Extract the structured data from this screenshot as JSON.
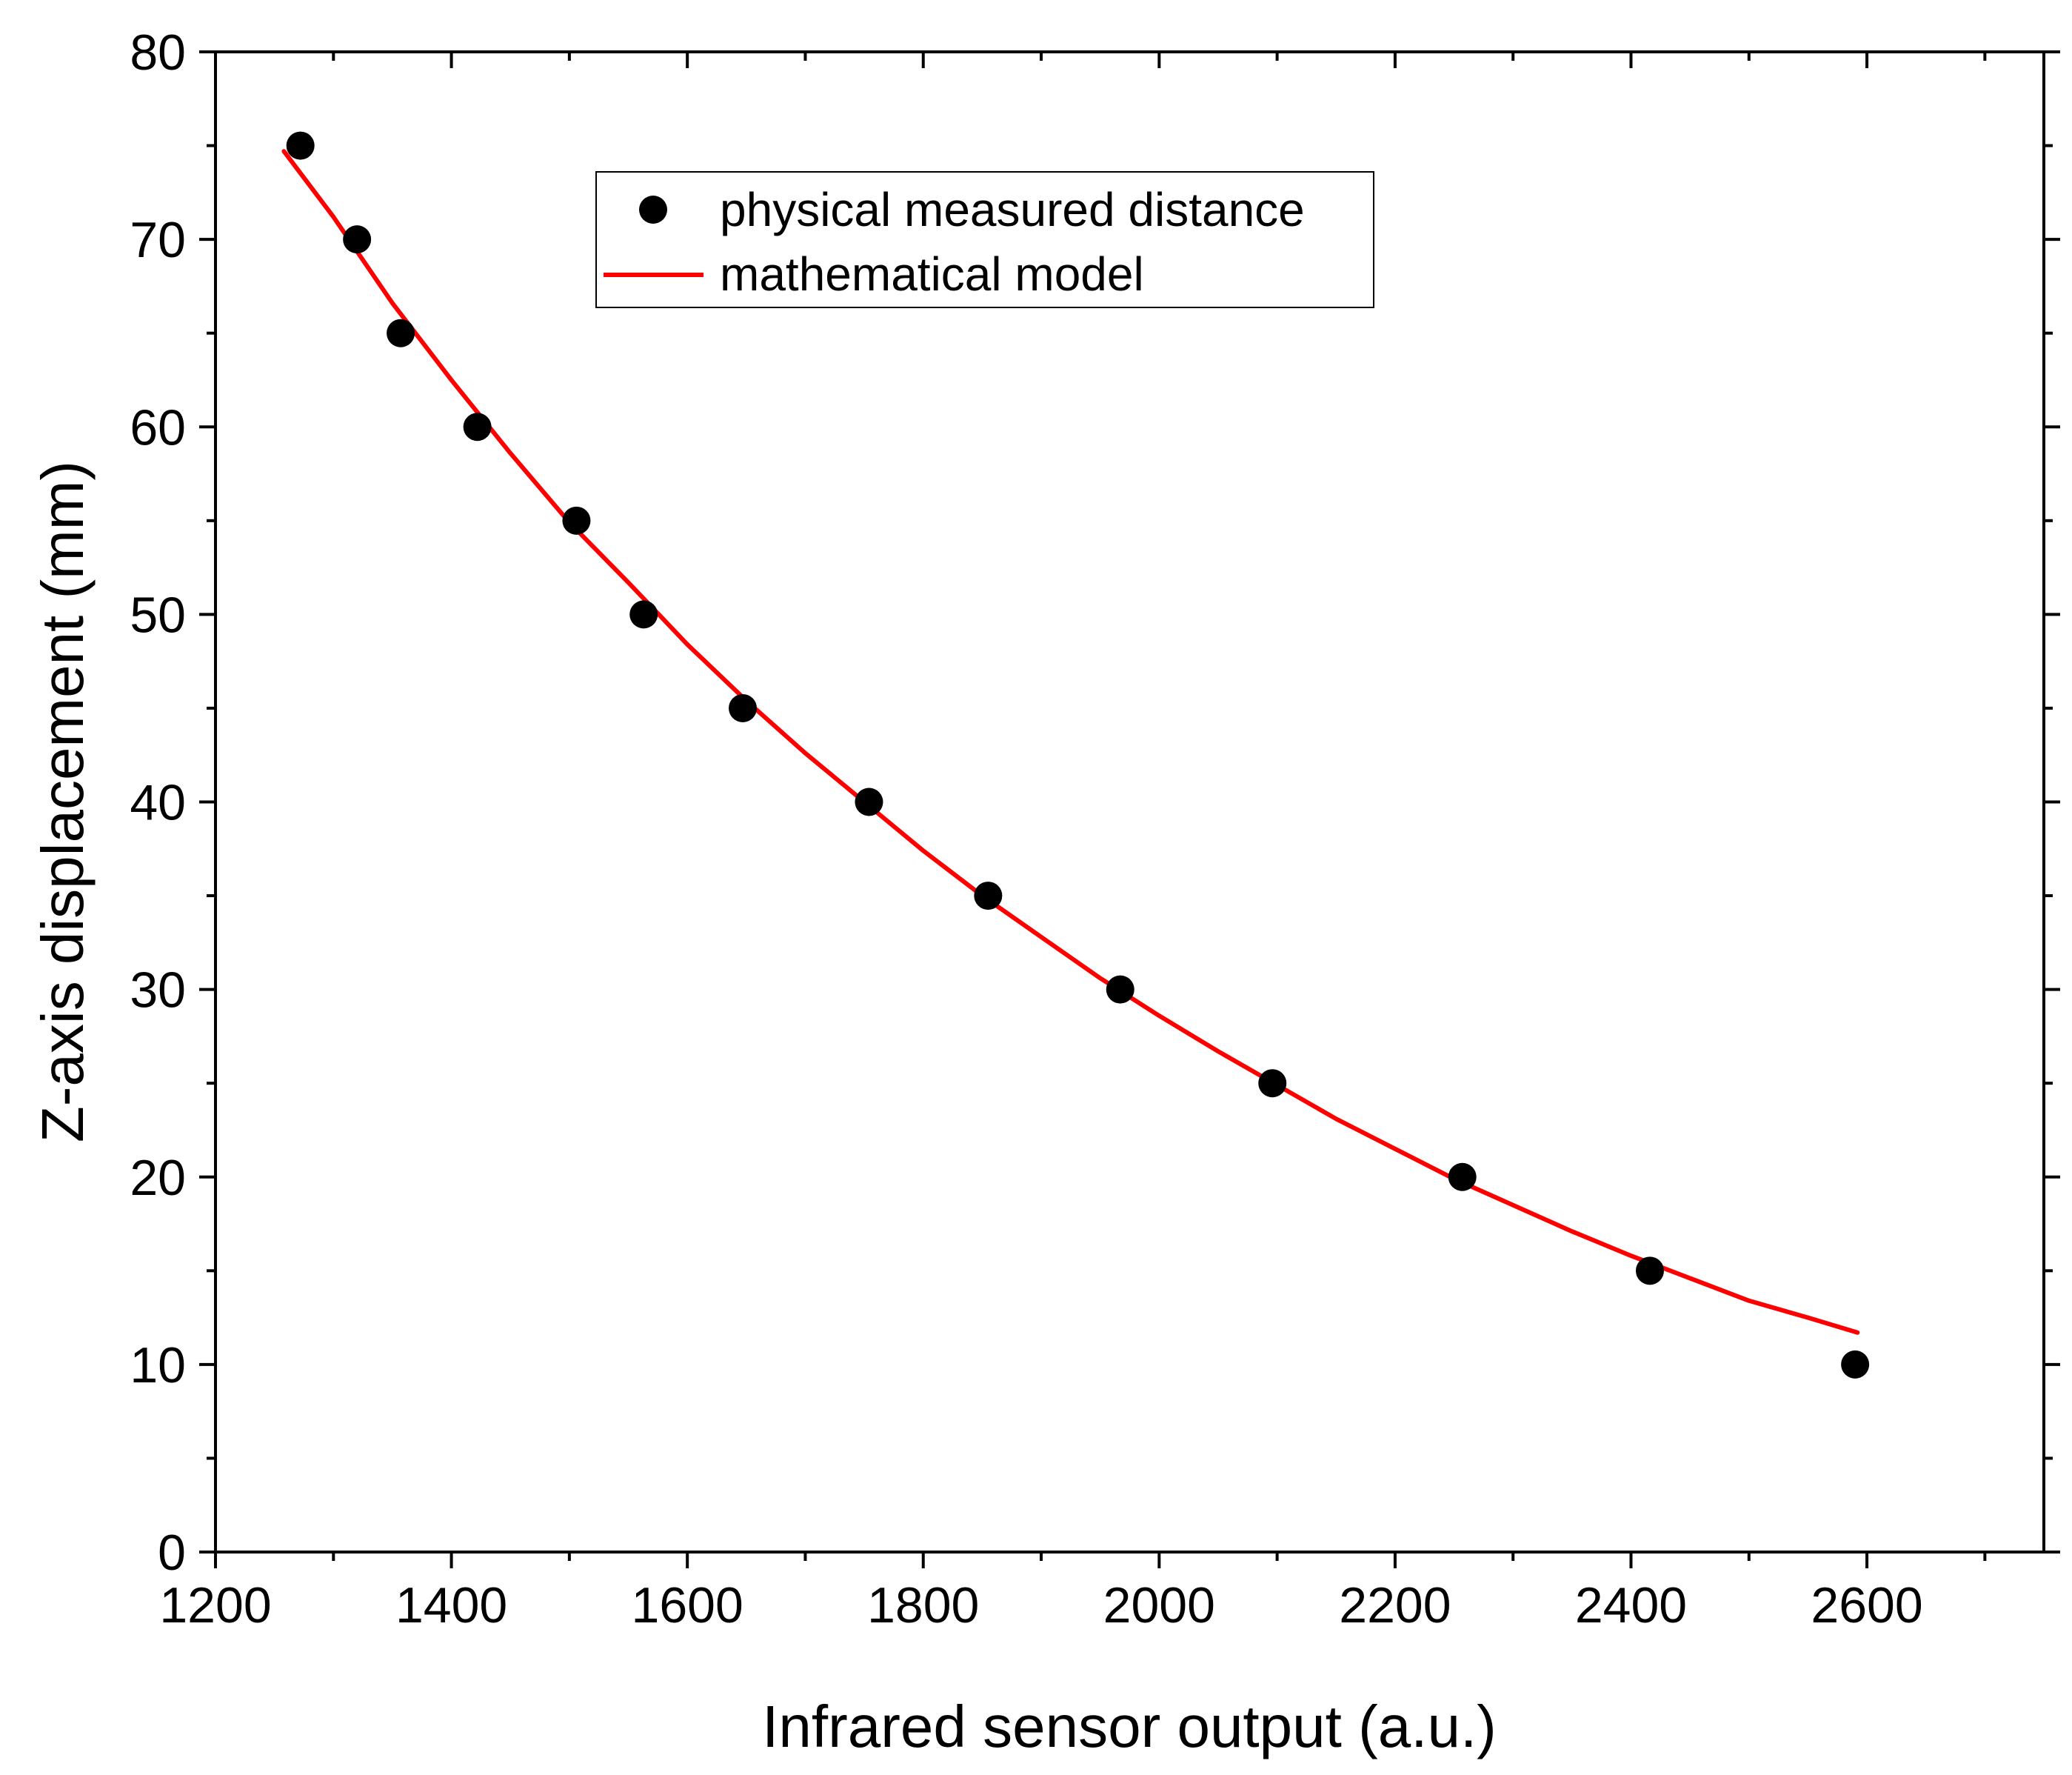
{
  "chart_data": {
    "type": "scatter",
    "title": "",
    "xlabel": "Infrared sensor output (a.u.)",
    "ylabel": "Z-axis displacement (mm)",
    "xlim": [
      1200,
      2750
    ],
    "ylim": [
      0,
      80
    ],
    "x_major_ticks": [
      1200,
      1400,
      1600,
      1800,
      2000,
      2200,
      2400,
      2600
    ],
    "x_minor_ticks": [
      1300,
      1500,
      1700,
      1900,
      2100,
      2300,
      2500,
      2700
    ],
    "y_major_ticks": [
      0,
      10,
      20,
      30,
      40,
      50,
      60,
      70,
      80
    ],
    "y_minor_ticks": [
      5,
      15,
      25,
      35,
      45,
      55,
      65,
      75
    ],
    "grid": false,
    "legend_position": "top-center",
    "series": [
      {
        "name": "physical measured distance",
        "kind": "scatter",
        "color": "#000000",
        "x": [
          1272,
          1320,
          1357,
          1422,
          1506,
          1563,
          1647,
          1754,
          1855,
          1967,
          2096,
          2257,
          2416,
          2590
        ],
        "y": [
          75,
          70,
          65,
          60,
          55,
          50,
          45,
          40,
          35,
          30,
          25,
          20,
          15,
          10
        ]
      },
      {
        "name": "mathematical model",
        "kind": "line",
        "color": "#ff0000",
        "x": [
          1258,
          1300,
          1350,
          1400,
          1450,
          1500,
          1550,
          1600,
          1650,
          1700,
          1750,
          1800,
          1850,
          1900,
          1950,
          2000,
          2050,
          2100,
          2150,
          2200,
          2250,
          2300,
          2350,
          2400,
          2450,
          2500,
          2550,
          2592
        ],
        "y": [
          74.7,
          71.2,
          66.6,
          62.5,
          58.6,
          54.9,
          51.7,
          48.4,
          45.4,
          42.6,
          40.0,
          37.4,
          35.0,
          32.8,
          30.6,
          28.6,
          26.7,
          24.9,
          23.1,
          21.5,
          19.9,
          18.5,
          17.1,
          15.8,
          14.6,
          13.4,
          12.5,
          11.7
        ]
      }
    ]
  }
}
